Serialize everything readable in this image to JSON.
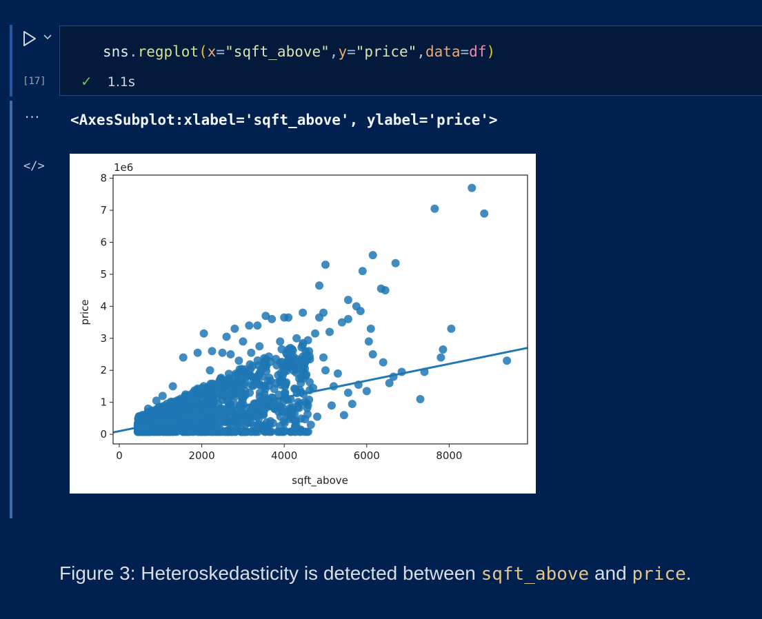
{
  "cell": {
    "execution_count": "[17]",
    "code": {
      "obj": "sns",
      "dot": ".",
      "func": "regplot",
      "open": "(",
      "arg1_key": "x",
      "eq": "=",
      "arg1_val": "\"sqft_above\"",
      "comma": ",",
      "arg2_key": "y",
      "arg2_val": "\"price\"",
      "arg3_key": "data",
      "arg3_val": "df",
      "close": ")"
    },
    "status_time": "1.1s",
    "output_repr": "<AxesSubplot:xlabel='sqft_above', ylabel='price'>"
  },
  "caption": {
    "prefix": "Figure 3: Heteroskedasticity is detected between ",
    "var1": "sqft_above",
    "middle": " and ",
    "var2": "price",
    "suffix": "."
  },
  "chart_data": {
    "type": "scatter",
    "xlabel": "sqft_above",
    "ylabel": "price",
    "y_offset_label": "1e6",
    "xlim": [
      -150,
      9900
    ],
    "ylim": [
      -0.3,
      8.1
    ],
    "xticks": [
      0,
      2000,
      4000,
      6000,
      8000
    ],
    "yticks": [
      0,
      1,
      2,
      3,
      4,
      5,
      6,
      7,
      8
    ],
    "point_color": "#1f77b4",
    "regression_line": {
      "x": [
        -150,
        9900
      ],
      "y": [
        0.06,
        2.7
      ]
    },
    "points": [
      [
        8550,
        7.7
      ],
      [
        7650,
        7.05
      ],
      [
        8850,
        6.9
      ],
      [
        6700,
        5.35
      ],
      [
        6150,
        5.6
      ],
      [
        5000,
        5.3
      ],
      [
        5900,
        5.1
      ],
      [
        6350,
        4.55
      ],
      [
        6450,
        4.5
      ],
      [
        4850,
        4.65
      ],
      [
        5550,
        4.2
      ],
      [
        5750,
        4.0
      ],
      [
        5850,
        3.85
      ],
      [
        4950,
        3.8
      ],
      [
        4850,
        3.65
      ],
      [
        4450,
        3.8
      ],
      [
        3550,
        3.7
      ],
      [
        4000,
        3.65
      ],
      [
        4100,
        3.65
      ],
      [
        3350,
        3.4
      ],
      [
        3150,
        3.4
      ],
      [
        3700,
        3.6
      ],
      [
        5400,
        3.5
      ],
      [
        5550,
        3.6
      ],
      [
        5100,
        3.2
      ],
      [
        6100,
        3.3
      ],
      [
        8050,
        3.3
      ],
      [
        2800,
        3.3
      ],
      [
        2600,
        3.05
      ],
      [
        2050,
        3.15
      ],
      [
        4750,
        3.15
      ],
      [
        6050,
        2.9
      ],
      [
        7850,
        2.65
      ],
      [
        7800,
        2.4
      ],
      [
        9400,
        2.3
      ],
      [
        6150,
        2.5
      ],
      [
        6400,
        2.25
      ],
      [
        7400,
        1.95
      ],
      [
        7300,
        1.1
      ],
      [
        6650,
        1.8
      ],
      [
        6550,
        1.6
      ],
      [
        6850,
        1.95
      ],
      [
        6000,
        1.35
      ],
      [
        5800,
        1.55
      ],
      [
        5550,
        1.3
      ],
      [
        5200,
        1.5
      ],
      [
        5650,
        0.95
      ],
      [
        5450,
        0.6
      ],
      [
        4800,
        0.55
      ],
      [
        5150,
        0.9
      ],
      [
        1550,
        2.4
      ],
      [
        1900,
        2.55
      ],
      [
        2250,
        2.6
      ],
      [
        2500,
        2.55
      ],
      [
        3000,
        2.9
      ],
      [
        3400,
        2.75
      ],
      [
        3900,
        2.9
      ],
      [
        4300,
        3.0
      ],
      [
        4600,
        2.6
      ],
      [
        4950,
        2.4
      ],
      [
        2200,
        2.0
      ],
      [
        1300,
        1.5
      ],
      [
        1050,
        1.2
      ],
      [
        900,
        1.05
      ],
      [
        700,
        0.8
      ],
      [
        600,
        0.6
      ],
      [
        500,
        0.3
      ],
      [
        3500,
        2.2
      ],
      [
        4500,
        2.05
      ],
      [
        5000,
        2.0
      ],
      [
        5300,
        1.9
      ],
      [
        4700,
        1.45
      ],
      [
        4200,
        0.85
      ],
      [
        3800,
        1.6
      ],
      [
        2900,
        2.3
      ],
      [
        2700,
        2.5
      ],
      [
        3200,
        2.55
      ],
      [
        4150,
        2.7
      ]
    ]
  }
}
